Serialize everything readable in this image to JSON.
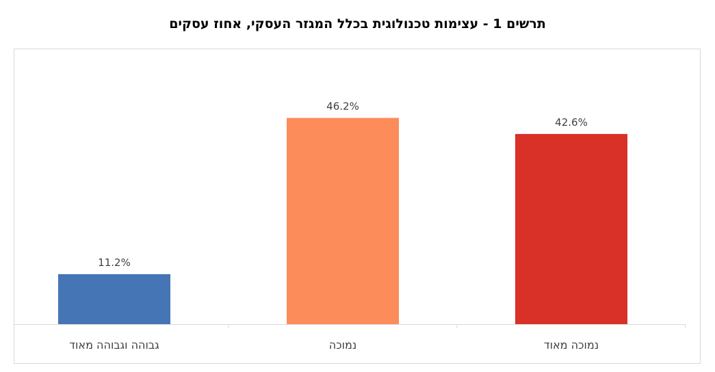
{
  "chart_data": {
    "type": "bar",
    "title": "תרשים 1 - עצימות טכנולוגית בכלל המגזר העסקי, אחוז עסקים",
    "xlabel": "",
    "ylabel": "",
    "categories": [
      "נמוכה מאוד",
      "נמוכה",
      "גבוהה וגבוהה מאוד"
    ],
    "values": [
      42.6,
      46.2,
      11.2
    ],
    "value_labels": [
      "42.6%",
      "46.2%",
      "11.2%"
    ],
    "colors": [
      "#d93127",
      "#fc8c59",
      "#4575b4"
    ],
    "ylim": [
      0,
      55
    ],
    "grid": false,
    "legend": "none"
  }
}
